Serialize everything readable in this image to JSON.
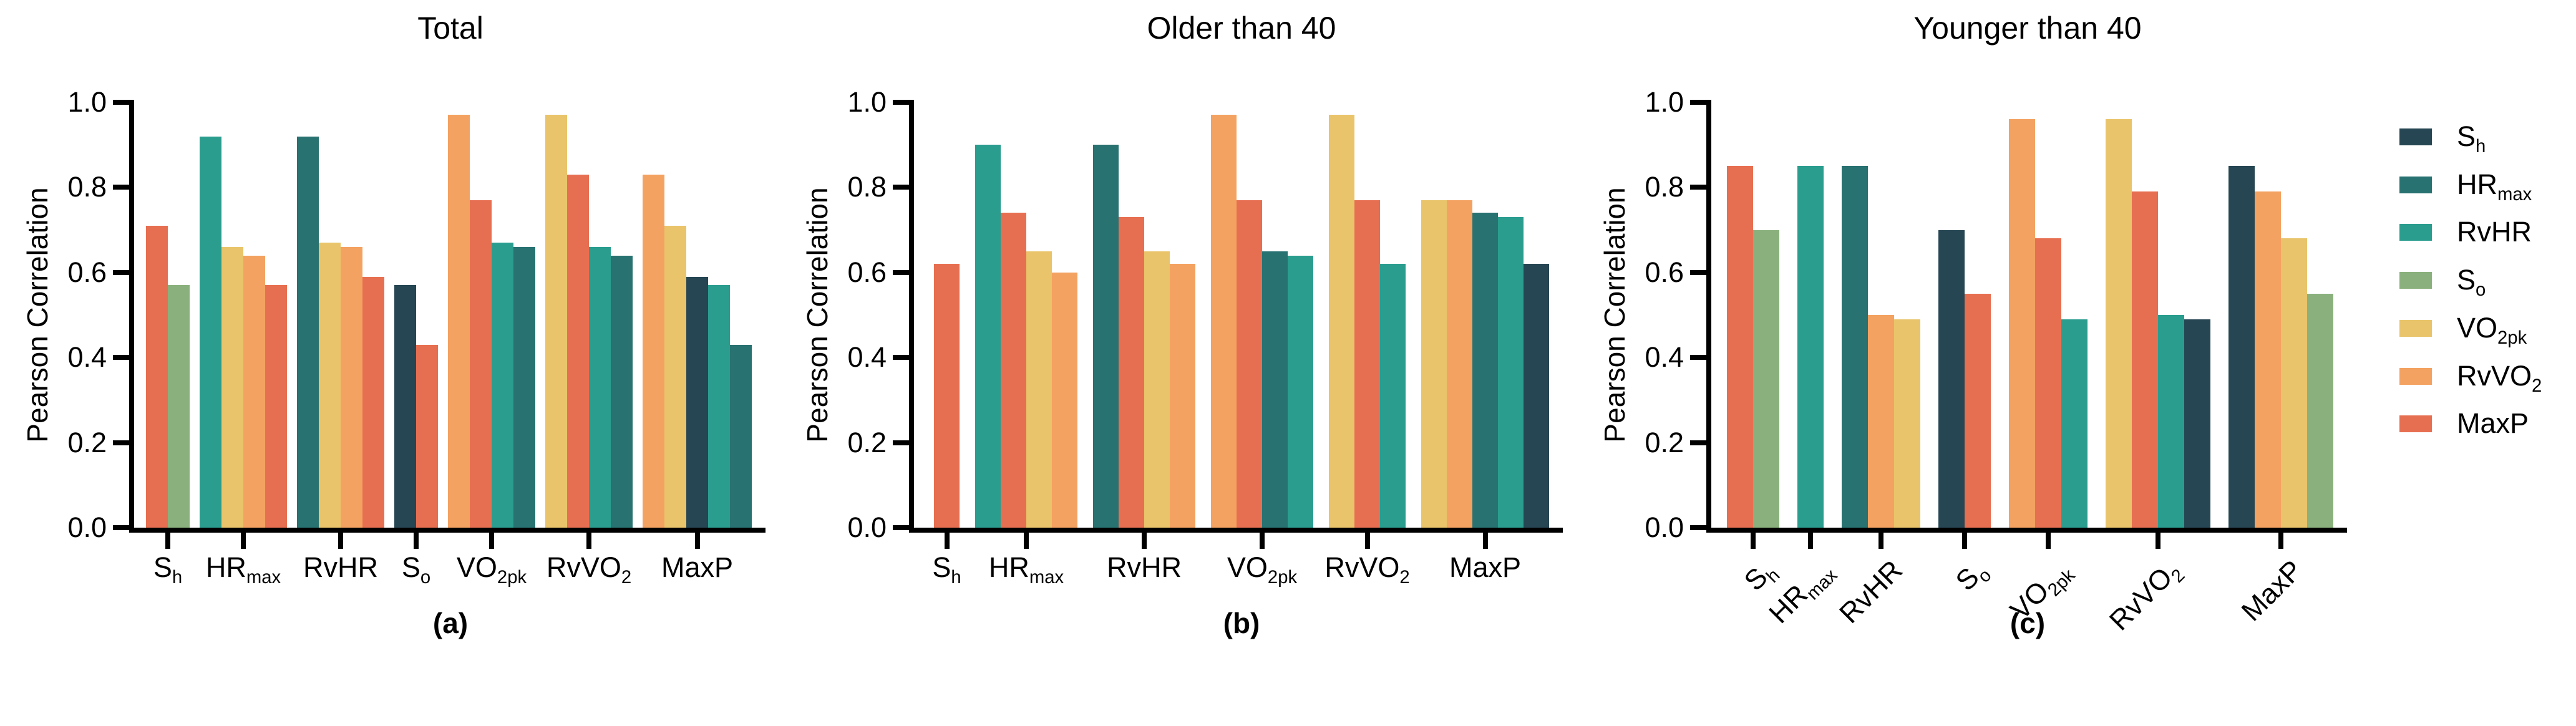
{
  "figure": {
    "background": "#ffffff",
    "axis_color": "#000000",
    "series": [
      {
        "key": "Sh",
        "label": [
          [
            "S",
            false
          ],
          [
            "h",
            true
          ]
        ],
        "color": "#264653"
      },
      {
        "key": "HRmax",
        "label": [
          [
            "HR",
            false
          ],
          [
            "max",
            true
          ]
        ],
        "color": "#287271"
      },
      {
        "key": "RvHR",
        "label": [
          [
            "RvHR",
            false
          ]
        ],
        "color": "#2a9d8f"
      },
      {
        "key": "So",
        "label": [
          [
            "S",
            false
          ],
          [
            "o",
            true
          ]
        ],
        "color": "#8ab17d"
      },
      {
        "key": "VO2pk",
        "label": [
          [
            "VO",
            false
          ],
          [
            "2pk",
            true
          ]
        ],
        "color": "#e9c46a"
      },
      {
        "key": "RvVO2",
        "label": [
          [
            "RvVO",
            false
          ],
          [
            "2",
            true
          ]
        ],
        "color": "#f4a261"
      },
      {
        "key": "MaxP",
        "label": [
          [
            "MaxP",
            false
          ]
        ],
        "color": "#e76f51"
      }
    ],
    "legend": {
      "position": "right",
      "items": [
        "Sh",
        "HRmax",
        "RvHR",
        "So",
        "VO2pk",
        "RvVO2",
        "MaxP"
      ]
    }
  },
  "chart_data": [
    {
      "type": "bar",
      "id": "a",
      "title": "Total",
      "caption": "(a)",
      "ylabel": "Pearson Correlation",
      "ylim": [
        0.0,
        1.0
      ],
      "yticks": [
        0.0,
        0.2,
        0.4,
        0.6,
        0.8,
        1.0
      ],
      "grid": false,
      "x_label_rotation": 0,
      "categories": [
        "Sh",
        "HRmax",
        "RvHR",
        "So",
        "VO2pk",
        "RvVO2",
        "MaxP"
      ],
      "groups": [
        {
          "category": "Sh",
          "bars": [
            {
              "series": "MaxP",
              "value": 0.71
            },
            {
              "series": "So",
              "value": 0.57
            }
          ]
        },
        {
          "category": "HRmax",
          "bars": [
            {
              "series": "RvHR",
              "value": 0.92
            },
            {
              "series": "VO2pk",
              "value": 0.66
            },
            {
              "series": "RvVO2",
              "value": 0.64
            },
            {
              "series": "MaxP",
              "value": 0.57
            }
          ]
        },
        {
          "category": "RvHR",
          "bars": [
            {
              "series": "HRmax",
              "value": 0.92
            },
            {
              "series": "VO2pk",
              "value": 0.67
            },
            {
              "series": "RvVO2",
              "value": 0.66
            },
            {
              "series": "MaxP",
              "value": 0.59
            }
          ]
        },
        {
          "category": "So",
          "bars": [
            {
              "series": "Sh",
              "value": 0.57
            },
            {
              "series": "MaxP",
              "value": 0.43
            }
          ]
        },
        {
          "category": "VO2pk",
          "bars": [
            {
              "series": "RvVO2",
              "value": 0.97
            },
            {
              "series": "MaxP",
              "value": 0.77
            },
            {
              "series": "RvHR",
              "value": 0.67
            },
            {
              "series": "HRmax",
              "value": 0.66
            }
          ]
        },
        {
          "category": "RvVO2",
          "bars": [
            {
              "series": "VO2pk",
              "value": 0.97
            },
            {
              "series": "MaxP",
              "value": 0.83
            },
            {
              "series": "RvHR",
              "value": 0.66
            },
            {
              "series": "HRmax",
              "value": 0.64
            }
          ]
        },
        {
          "category": "MaxP",
          "bars": [
            {
              "series": "RvVO2",
              "value": 0.83
            },
            {
              "series": "VO2pk",
              "value": 0.71
            },
            {
              "series": "Sh",
              "value": 0.59
            },
            {
              "series": "RvHR",
              "value": 0.57
            },
            {
              "series": "HRmax",
              "value": 0.43
            }
          ]
        }
      ]
    },
    {
      "type": "bar",
      "id": "b",
      "title": "Older than 40",
      "caption": "(b)",
      "ylabel": "Pearson Correlation",
      "ylim": [
        0.0,
        1.0
      ],
      "yticks": [
        0.0,
        0.2,
        0.4,
        0.6,
        0.8,
        1.0
      ],
      "grid": false,
      "x_label_rotation": 0,
      "categories": [
        "Sh",
        "HRmax",
        "RvHR",
        "VO2pk",
        "RvVO2",
        "MaxP"
      ],
      "groups": [
        {
          "category": "Sh",
          "bars": [
            {
              "series": "MaxP",
              "value": 0.62
            }
          ]
        },
        {
          "category": "HRmax",
          "bars": [
            {
              "series": "RvHR",
              "value": 0.9
            },
            {
              "series": "MaxP",
              "value": 0.74
            },
            {
              "series": "VO2pk",
              "value": 0.65
            },
            {
              "series": "RvVO2",
              "value": 0.6
            }
          ]
        },
        {
          "category": "RvHR",
          "bars": [
            {
              "series": "HRmax",
              "value": 0.9
            },
            {
              "series": "MaxP",
              "value": 0.73
            },
            {
              "series": "VO2pk",
              "value": 0.65
            },
            {
              "series": "RvVO2",
              "value": 0.62
            }
          ]
        },
        {
          "category": "VO2pk",
          "bars": [
            {
              "series": "RvVO2",
              "value": 0.97
            },
            {
              "series": "MaxP",
              "value": 0.77
            },
            {
              "series": "HRmax",
              "value": 0.65
            },
            {
              "series": "RvHR",
              "value": 0.64
            }
          ]
        },
        {
          "category": "RvVO2",
          "bars": [
            {
              "series": "VO2pk",
              "value": 0.97
            },
            {
              "series": "MaxP",
              "value": 0.77
            },
            {
              "series": "RvHR",
              "value": 0.62
            }
          ]
        },
        {
          "category": "MaxP",
          "bars": [
            {
              "series": "VO2pk",
              "value": 0.77
            },
            {
              "series": "RvVO2",
              "value": 0.77
            },
            {
              "series": "HRmax",
              "value": 0.74
            },
            {
              "series": "RvHR",
              "value": 0.73
            },
            {
              "series": "Sh",
              "value": 0.62
            }
          ]
        }
      ]
    },
    {
      "type": "bar",
      "id": "c",
      "title": "Younger than 40",
      "caption": "(c)",
      "ylabel": "Pearson Correlation",
      "ylim": [
        0.0,
        1.0
      ],
      "yticks": [
        0.0,
        0.2,
        0.4,
        0.6,
        0.8,
        1.0
      ],
      "grid": false,
      "x_label_rotation": 45,
      "categories": [
        "Sh",
        "HRmax",
        "RvHR",
        "So",
        "VO2pk",
        "RvVO2",
        "MaxP"
      ],
      "groups": [
        {
          "category": "Sh",
          "bars": [
            {
              "series": "MaxP",
              "value": 0.85
            },
            {
              "series": "So",
              "value": 0.7
            }
          ]
        },
        {
          "category": "HRmax",
          "bars": [
            {
              "series": "RvHR",
              "value": 0.85
            }
          ]
        },
        {
          "category": "RvHR",
          "bars": [
            {
              "series": "HRmax",
              "value": 0.85
            },
            {
              "series": "RvVO2",
              "value": 0.5
            },
            {
              "series": "VO2pk",
              "value": 0.49
            }
          ]
        },
        {
          "category": "So",
          "bars": [
            {
              "series": "Sh",
              "value": 0.7
            },
            {
              "series": "MaxP",
              "value": 0.55
            }
          ]
        },
        {
          "category": "VO2pk",
          "bars": [
            {
              "series": "RvVO2",
              "value": 0.96
            },
            {
              "series": "MaxP",
              "value": 0.68
            },
            {
              "series": "RvHR",
              "value": 0.49
            }
          ]
        },
        {
          "category": "RvVO2",
          "bars": [
            {
              "series": "VO2pk",
              "value": 0.96
            },
            {
              "series": "MaxP",
              "value": 0.79
            },
            {
              "series": "RvHR",
              "value": 0.5
            },
            {
              "series": "Sh",
              "value": 0.49
            }
          ]
        },
        {
          "category": "MaxP",
          "bars": [
            {
              "series": "Sh",
              "value": 0.85
            },
            {
              "series": "RvVO2",
              "value": 0.79
            },
            {
              "series": "VO2pk",
              "value": 0.68
            },
            {
              "series": "So",
              "value": 0.55
            }
          ]
        }
      ]
    }
  ]
}
